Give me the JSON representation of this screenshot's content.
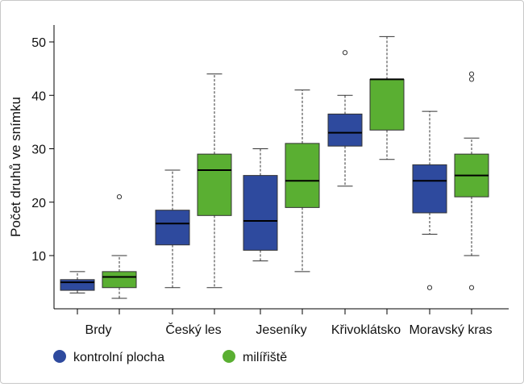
{
  "chart_data": {
    "type": "box",
    "ylabel": "Počet druhů ve snímku",
    "xlabel": "",
    "ylim": [
      0,
      55
    ],
    "yticks": [
      10,
      20,
      30,
      40,
      50
    ],
    "categories": [
      "Brdy",
      "Český les",
      "Jeseníky",
      "Křivoklátsko",
      "Moravský kras"
    ],
    "series": [
      {
        "name": "kontrolní plocha",
        "color": "#2e4a9e",
        "boxes": [
          {
            "whisker_low": 3,
            "q1": 3.5,
            "median": 5,
            "q3": 5.5,
            "whisker_high": 7,
            "outliers": []
          },
          {
            "whisker_low": 4,
            "q1": 12,
            "median": 16,
            "q3": 18.5,
            "whisker_high": 26,
            "outliers": []
          },
          {
            "whisker_low": 9,
            "q1": 11,
            "median": 16.5,
            "q3": 25,
            "whisker_high": 30,
            "outliers": []
          },
          {
            "whisker_low": 23,
            "q1": 30.5,
            "median": 33,
            "q3": 36.5,
            "whisker_high": 40,
            "outliers": [
              48
            ]
          },
          {
            "whisker_low": 14,
            "q1": 18,
            "median": 24,
            "q3": 27,
            "whisker_high": 37,
            "outliers": [
              4
            ]
          }
        ]
      },
      {
        "name": "milířiště",
        "color": "#5aaf32",
        "boxes": [
          {
            "whisker_low": 2,
            "q1": 4,
            "median": 6,
            "q3": 7,
            "whisker_high": 10,
            "outliers": [
              21
            ]
          },
          {
            "whisker_low": 4,
            "q1": 17.5,
            "median": 26,
            "q3": 29,
            "whisker_high": 44,
            "outliers": []
          },
          {
            "whisker_low": 7,
            "q1": 19,
            "median": 24,
            "q3": 31,
            "whisker_high": 41,
            "outliers": []
          },
          {
            "whisker_low": 28,
            "q1": 33.5,
            "median": 43,
            "q3": 43,
            "whisker_high": 51,
            "outliers": []
          },
          {
            "whisker_low": 10,
            "q1": 21,
            "median": 25,
            "q3": 29,
            "whisker_high": 32,
            "outliers": [
              4,
              43,
              44
            ]
          }
        ]
      }
    ],
    "legend_position": "bottom-left"
  }
}
